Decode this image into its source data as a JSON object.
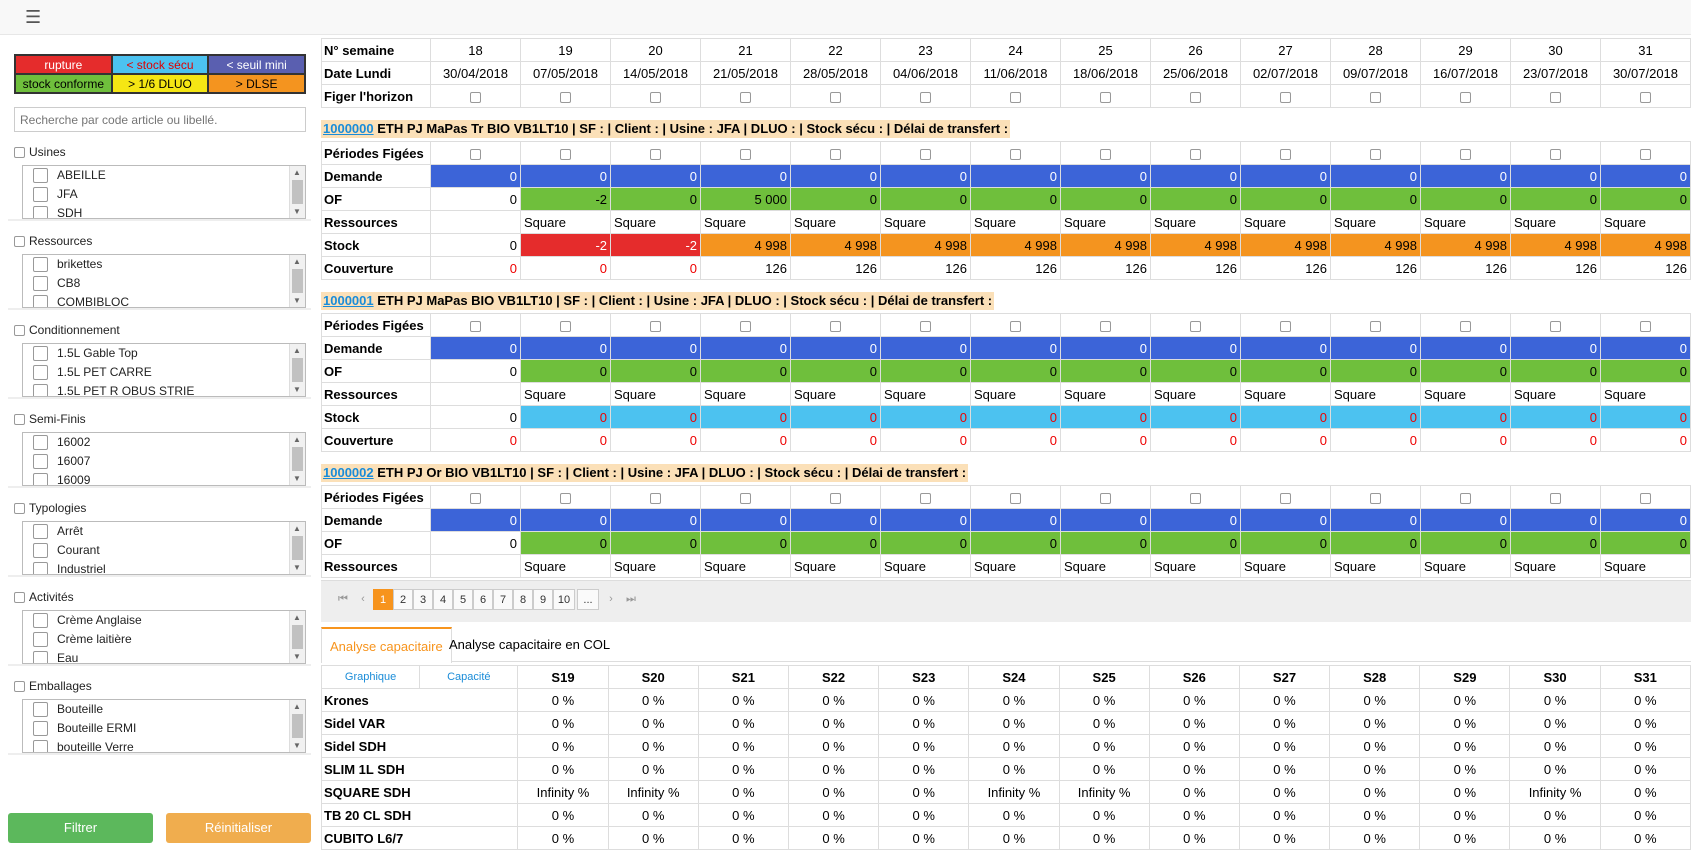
{
  "legend": [
    [
      {
        "label": "rupture",
        "bg": "#e52c2c",
        "fg": "#ffffff"
      },
      {
        "label": "< stock sécu",
        "bg": "#4cc2f0",
        "fg": "#e00000"
      },
      {
        "label": "< seuil mini",
        "bg": "#5a5fb0",
        "fg": "#ffffff"
      }
    ],
    [
      {
        "label": "stock conforme",
        "bg": "#6fbf3c",
        "fg": "#000000"
      },
      {
        "label": "> 1/6 DLUO",
        "bg": "#f5e614",
        "fg": "#000000"
      },
      {
        "label": "> DLSE",
        "bg": "#f4941f",
        "fg": "#000000"
      }
    ]
  ],
  "search_placeholder": "Recherche par code article ou libellé.",
  "filters": [
    {
      "title": "Usines",
      "items": [
        "ABEILLE",
        "JFA",
        "SDH"
      ]
    },
    {
      "title": "Ressources",
      "items": [
        "brikettes",
        "CB8",
        "COMBIBLOC"
      ]
    },
    {
      "title": "Conditionnement",
      "items": [
        "1.5L Gable Top",
        "1.5L PET CARRE",
        "1.5L PET R OBUS STRIE"
      ]
    },
    {
      "title": "Semi-Finis",
      "items": [
        "16002",
        "16007",
        "16009"
      ]
    },
    {
      "title": "Typologies",
      "items": [
        "Arrêt",
        "Courant",
        "Industriel"
      ]
    },
    {
      "title": "Activités",
      "items": [
        "Crème Anglaise",
        "Crème laitière",
        "Eau"
      ]
    },
    {
      "title": "Emballages",
      "items": [
        "Bouteille",
        "Bouteille ERMI",
        "bouteille Verre"
      ]
    }
  ],
  "buttons": {
    "filter": "Filtrer",
    "reset": "Réinitialiser"
  },
  "header": {
    "week_label": "N° semaine",
    "date_label": "Date Lundi",
    "freeze_label": "Figer l'horizon",
    "weeks": [
      "18",
      "19",
      "20",
      "21",
      "22",
      "23",
      "24",
      "25",
      "26",
      "27",
      "28",
      "29",
      "30",
      "31"
    ],
    "dates": [
      "30/04/2018",
      "07/05/2018",
      "14/05/2018",
      "21/05/2018",
      "28/05/2018",
      "04/06/2018",
      "11/06/2018",
      "18/06/2018",
      "25/06/2018",
      "02/07/2018",
      "09/07/2018",
      "16/07/2018",
      "23/07/2018",
      "30/07/2018"
    ]
  },
  "row_labels": {
    "frozen": "Périodes Figées",
    "demand": "Demande",
    "of": "OF",
    "resources": "Ressources",
    "stock": "Stock",
    "coverage": "Couverture"
  },
  "products": [
    {
      "code": "1000000",
      "desc": " ETH PJ MaPas Tr BIO VB1LT10 | SF : | Client : | Usine : JFA | DLUO : | Stock sécu : | Délai de transfert :",
      "demand": [
        "0",
        "0",
        "0",
        "0",
        "0",
        "0",
        "0",
        "0",
        "0",
        "0",
        "0",
        "0",
        "0",
        "0"
      ],
      "of": [
        "0",
        "-2",
        "0",
        "5 000",
        "0",
        "0",
        "0",
        "0",
        "0",
        "0",
        "0",
        "0",
        "0",
        "0"
      ],
      "resources": [
        "",
        "Square",
        "Square",
        "Square",
        "Square",
        "Square",
        "Square",
        "Square",
        "Square",
        "Square",
        "Square",
        "Square",
        "Square",
        "Square"
      ],
      "stock": [
        "0",
        "-2",
        "-2",
        "4 998",
        "4 998",
        "4 998",
        "4 998",
        "4 998",
        "4 998",
        "4 998",
        "4 998",
        "4 998",
        "4 998",
        "4 998"
      ],
      "stock_class": [
        "",
        "stk-r",
        "stk-r",
        "stk-o",
        "stk-o",
        "stk-o",
        "stk-o",
        "stk-o",
        "stk-o",
        "stk-o",
        "stk-o",
        "stk-o",
        "stk-o",
        "stk-o"
      ],
      "coverage": [
        "0",
        "0",
        "0",
        "126",
        "126",
        "126",
        "126",
        "126",
        "126",
        "126",
        "126",
        "126",
        "126",
        "126"
      ]
    },
    {
      "code": "1000001",
      "desc": " ETH PJ MaPas BIO VB1LT10 | SF : | Client : | Usine : JFA | DLUO : | Stock sécu : | Délai de transfert :",
      "demand": [
        "0",
        "0",
        "0",
        "0",
        "0",
        "0",
        "0",
        "0",
        "0",
        "0",
        "0",
        "0",
        "0",
        "0"
      ],
      "of": [
        "0",
        "0",
        "0",
        "0",
        "0",
        "0",
        "0",
        "0",
        "0",
        "0",
        "0",
        "0",
        "0",
        "0"
      ],
      "resources": [
        "",
        "Square",
        "Square",
        "Square",
        "Square",
        "Square",
        "Square",
        "Square",
        "Square",
        "Square",
        "Square",
        "Square",
        "Square",
        "Square"
      ],
      "stock": [
        "0",
        "0",
        "0",
        "0",
        "0",
        "0",
        "0",
        "0",
        "0",
        "0",
        "0",
        "0",
        "0",
        "0"
      ],
      "stock_class": [
        "",
        "stk-b",
        "stk-b",
        "stk-b",
        "stk-b",
        "stk-b",
        "stk-b",
        "stk-b",
        "stk-b",
        "stk-b",
        "stk-b",
        "stk-b",
        "stk-b",
        "stk-b"
      ],
      "coverage": [
        "0",
        "0",
        "0",
        "0",
        "0",
        "0",
        "0",
        "0",
        "0",
        "0",
        "0",
        "0",
        "0",
        "0"
      ]
    },
    {
      "code": "1000002",
      "desc": " ETH PJ Or BIO VB1LT10 | SF : | Client : | Usine : JFA | DLUO : | Stock sécu : | Délai de transfert :",
      "demand": [
        "0",
        "0",
        "0",
        "0",
        "0",
        "0",
        "0",
        "0",
        "0",
        "0",
        "0",
        "0",
        "0",
        "0"
      ],
      "of": [
        "0",
        "0",
        "0",
        "0",
        "0",
        "0",
        "0",
        "0",
        "0",
        "0",
        "0",
        "0",
        "0",
        "0"
      ],
      "resources": [
        "",
        "Square",
        "Square",
        "Square",
        "Square",
        "Square",
        "Square",
        "Square",
        "Square",
        "Square",
        "Square",
        "Square",
        "Square",
        "Square"
      ]
    }
  ],
  "pager": {
    "first": "⏮",
    "prev": "‹",
    "pages": [
      "1",
      "2",
      "3",
      "4",
      "5",
      "6",
      "7",
      "8",
      "9",
      "10",
      "..."
    ],
    "next": "›",
    "last": "⏭",
    "current": "1"
  },
  "tabs": [
    "Analyse capacitaire",
    "Analyse capacitaire en COL"
  ],
  "capacity": {
    "graph_label": "Graphique",
    "cap_label": "Capacité",
    "weeks": [
      "S19",
      "S20",
      "S21",
      "S22",
      "S23",
      "S24",
      "S25",
      "S26",
      "S27",
      "S28",
      "S29",
      "S30",
      "S31"
    ],
    "rows": [
      {
        "name": "Krones",
        "values": [
          "0 %",
          "0 %",
          "0 %",
          "0 %",
          "0 %",
          "0 %",
          "0 %",
          "0 %",
          "0 %",
          "0 %",
          "0 %",
          "0 %",
          "0 %"
        ]
      },
      {
        "name": "Sidel VAR",
        "values": [
          "0 %",
          "0 %",
          "0 %",
          "0 %",
          "0 %",
          "0 %",
          "0 %",
          "0 %",
          "0 %",
          "0 %",
          "0 %",
          "0 %",
          "0 %"
        ]
      },
      {
        "name": "Sidel SDH",
        "values": [
          "0 %",
          "0 %",
          "0 %",
          "0 %",
          "0 %",
          "0 %",
          "0 %",
          "0 %",
          "0 %",
          "0 %",
          "0 %",
          "0 %",
          "0 %"
        ]
      },
      {
        "name": "SLIM 1L SDH",
        "values": [
          "0 %",
          "0 %",
          "0 %",
          "0 %",
          "0 %",
          "0 %",
          "0 %",
          "0 %",
          "0 %",
          "0 %",
          "0 %",
          "0 %",
          "0 %"
        ]
      },
      {
        "name": "SQUARE SDH",
        "values": [
          "Infinity %",
          "Infinity %",
          "0 %",
          "0 %",
          "0 %",
          "Infinity %",
          "Infinity %",
          "0 %",
          "0 %",
          "0 %",
          "0 %",
          "Infinity %",
          "0 %"
        ]
      },
      {
        "name": "TB 20 CL SDH",
        "values": [
          "0 %",
          "0 %",
          "0 %",
          "0 %",
          "0 %",
          "0 %",
          "0 %",
          "0 %",
          "0 %",
          "0 %",
          "0 %",
          "0 %",
          "0 %"
        ]
      },
      {
        "name": "CUBITO L6/7",
        "values": [
          "0 %",
          "0 %",
          "0 %",
          "0 %",
          "0 %",
          "0 %",
          "0 %",
          "0 %",
          "0 %",
          "0 %",
          "0 %",
          "0 %",
          "0 %"
        ]
      }
    ]
  }
}
